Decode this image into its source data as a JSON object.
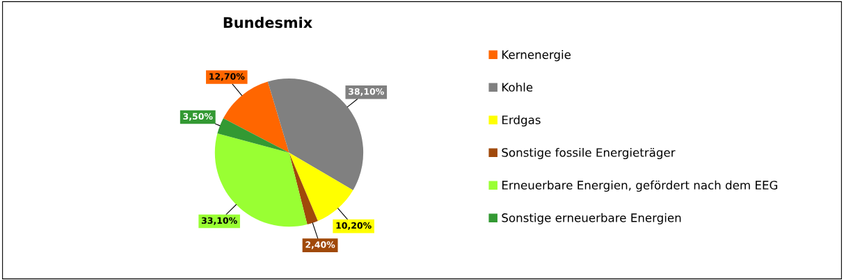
{
  "chart_data": {
    "type": "pie",
    "title": "Bundesmix",
    "categories": [
      "Kernenergie",
      "Kohle",
      "Erdgas",
      "Sonstige fossile Energieträger",
      "Erneuerbare Energien, gefördert nach dem EEG",
      "Sonstige erneuerbare Energien"
    ],
    "values": [
      12.7,
      38.1,
      10.2,
      2.4,
      33.1,
      3.5
    ],
    "value_labels": [
      "12,70%",
      "38,10%",
      "10,20%",
      "2,40%",
      "33,10%",
      "3,50%"
    ],
    "colors": [
      "#ff6600",
      "#808080",
      "#ffff00",
      "#a0490a",
      "#99ff33",
      "#339933"
    ],
    "legend": "right"
  }
}
